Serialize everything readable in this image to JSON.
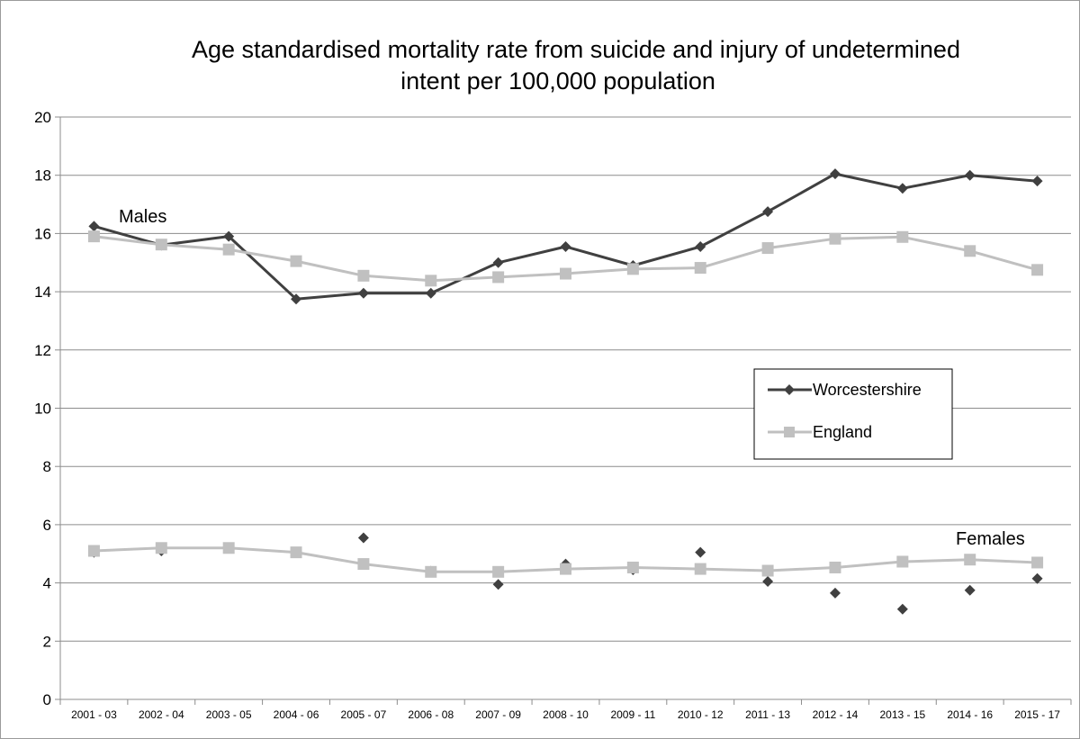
{
  "chart_data": {
    "type": "line",
    "title_line1": "Age standardised mortality rate from suicide and injury of undetermined",
    "title_line2": "intent per 100,000 population",
    "categories": [
      "2001 - 03",
      "2002 - 04",
      "2003 - 05",
      "2004 - 06",
      "2005 - 07",
      "2006 - 08",
      "2007 - 09",
      "2008 - 10",
      "2009 - 11",
      "2010 - 12",
      "2011 - 13",
      "2012 - 14",
      "2013 - 15",
      "2014 - 16",
      "2015 - 17"
    ],
    "ylim": [
      0,
      20
    ],
    "yticks": [
      "0",
      "2",
      "4",
      "6",
      "8",
      "10",
      "12",
      "14",
      "16",
      "18",
      "20"
    ],
    "grid": true,
    "legend_placement": "right-middle",
    "legend": [
      "Worcestershire",
      "England"
    ],
    "annotations": {
      "males": "Males",
      "females": "Females"
    },
    "series": [
      {
        "name": "Worcestershire",
        "group": "Males",
        "color": "#404040",
        "marker": "diamond",
        "line": true,
        "values": [
          16.25,
          15.6,
          15.9,
          13.75,
          13.95,
          13.95,
          15.0,
          15.55,
          14.9,
          15.55,
          16.75,
          18.05,
          17.55,
          18.0,
          17.8
        ]
      },
      {
        "name": "England",
        "group": "Males",
        "color": "#c0c0c0",
        "marker": "square",
        "line": true,
        "values": [
          15.9,
          15.62,
          15.45,
          15.05,
          14.55,
          14.38,
          14.5,
          14.62,
          14.78,
          14.82,
          15.5,
          15.82,
          15.88,
          15.4,
          14.75
        ]
      },
      {
        "name": "Worcestershire",
        "group": "Females",
        "color": "#404040",
        "marker": "diamond",
        "line": false,
        "values": [
          5.05,
          5.1,
          5.2,
          5.05,
          5.55,
          4.4,
          3.95,
          4.65,
          4.45,
          5.05,
          4.05,
          3.65,
          3.1,
          3.75,
          4.15
        ]
      },
      {
        "name": "England",
        "group": "Females",
        "color": "#c0c0c0",
        "marker": "square",
        "line": true,
        "values": [
          5.1,
          5.2,
          5.2,
          5.05,
          4.65,
          4.38,
          4.38,
          4.48,
          4.53,
          4.48,
          4.42,
          4.53,
          4.73,
          4.8,
          4.7
        ]
      }
    ]
  }
}
